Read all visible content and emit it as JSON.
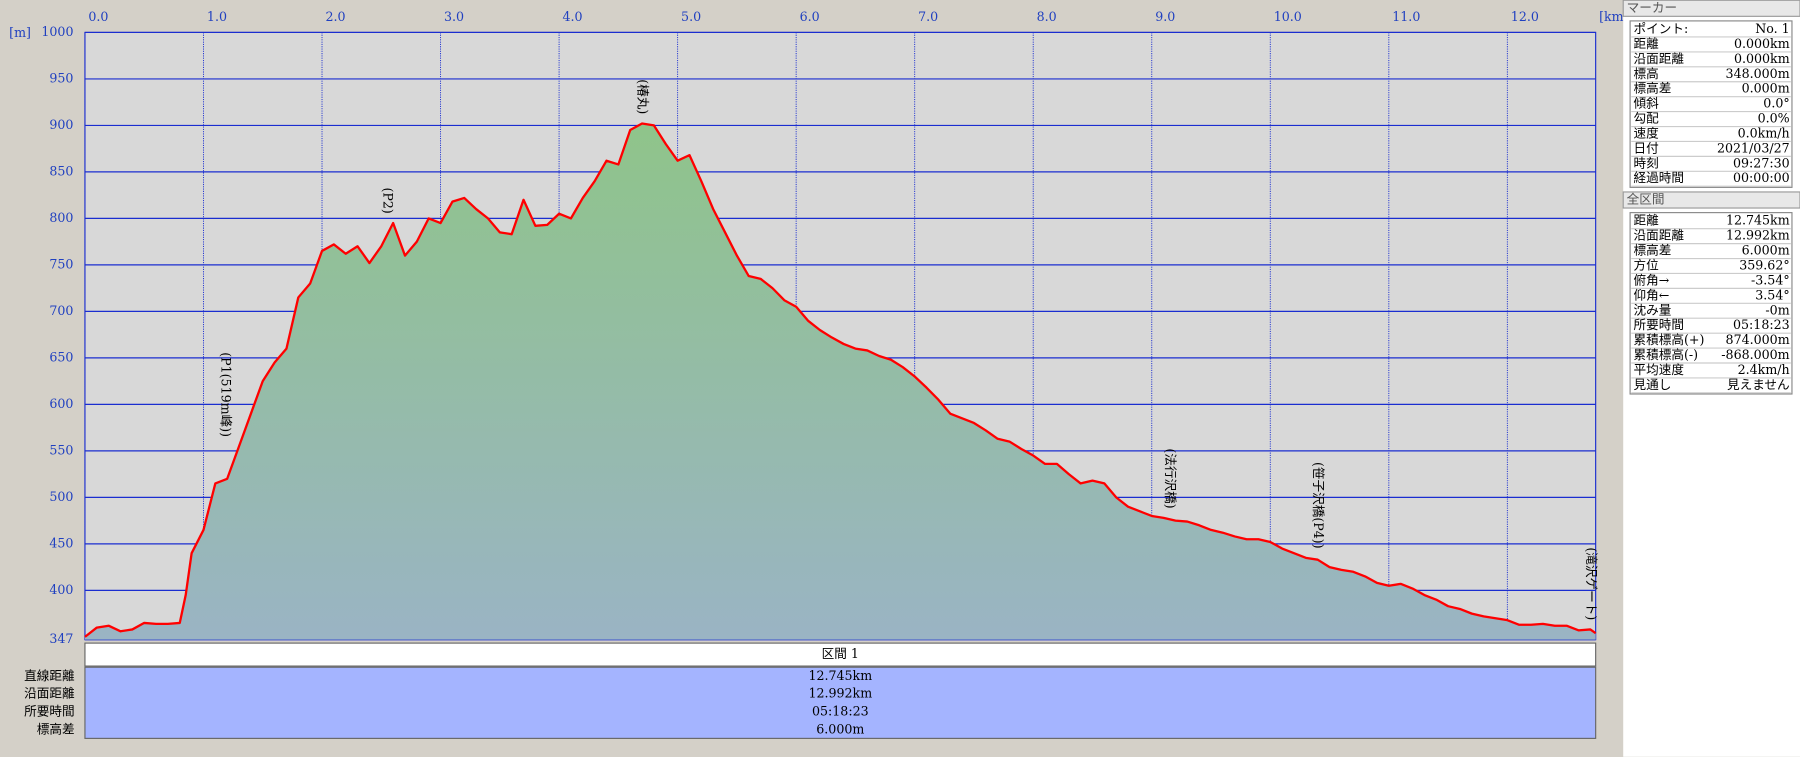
{
  "chart_data": {
    "type": "area",
    "x_unit": "[km]",
    "y_unit": "[m]",
    "x": [
      0.0,
      0.1,
      0.2,
      0.3,
      0.4,
      0.5,
      0.6,
      0.7,
      0.8,
      0.85,
      0.9,
      1.0,
      1.1,
      1.2,
      1.3,
      1.4,
      1.5,
      1.6,
      1.7,
      1.8,
      1.9,
      2.0,
      2.1,
      2.2,
      2.3,
      2.4,
      2.5,
      2.6,
      2.7,
      2.8,
      2.9,
      3.0,
      3.1,
      3.2,
      3.3,
      3.4,
      3.5,
      3.6,
      3.7,
      3.8,
      3.9,
      4.0,
      4.1,
      4.2,
      4.3,
      4.4,
      4.5,
      4.6,
      4.7,
      4.8,
      4.9,
      5.0,
      5.1,
      5.2,
      5.3,
      5.4,
      5.5,
      5.6,
      5.7,
      5.8,
      5.9,
      6.0,
      6.1,
      6.2,
      6.3,
      6.4,
      6.5,
      6.6,
      6.7,
      6.8,
      6.9,
      7.0,
      7.1,
      7.2,
      7.3,
      7.4,
      7.5,
      7.6,
      7.7,
      7.8,
      7.9,
      8.0,
      8.1,
      8.2,
      8.3,
      8.4,
      8.5,
      8.6,
      8.7,
      8.8,
      8.9,
      9.0,
      9.1,
      9.2,
      9.3,
      9.4,
      9.5,
      9.6,
      9.7,
      9.8,
      9.9,
      10.0,
      10.1,
      10.2,
      10.3,
      10.4,
      10.5,
      10.6,
      10.7,
      10.8,
      10.9,
      11.0,
      11.1,
      11.2,
      11.3,
      11.4,
      11.5,
      11.6,
      11.7,
      11.8,
      11.9,
      12.0,
      12.1,
      12.2,
      12.3,
      12.4,
      12.5,
      12.6,
      12.7,
      12.745
    ],
    "values": [
      350,
      360,
      362,
      356,
      358,
      365,
      364,
      364,
      365,
      395,
      440,
      465,
      515,
      520,
      555,
      590,
      625,
      645,
      660,
      715,
      730,
      765,
      772,
      762,
      770,
      752,
      770,
      795,
      760,
      775,
      800,
      795,
      818,
      822,
      810,
      800,
      785,
      783,
      820,
      792,
      793,
      805,
      800,
      822,
      840,
      862,
      858,
      895,
      902,
      900,
      880,
      862,
      868,
      840,
      810,
      785,
      760,
      738,
      735,
      725,
      712,
      705,
      690,
      680,
      672,
      665,
      660,
      658,
      652,
      648,
      640,
      630,
      618,
      605,
      590,
      585,
      580,
      572,
      563,
      560,
      552,
      545,
      536,
      536,
      525,
      515,
      518,
      515,
      500,
      490,
      485,
      480,
      478,
      475,
      474,
      470,
      465,
      462,
      458,
      455,
      455,
      452,
      445,
      440,
      435,
      433,
      425,
      422,
      420,
      415,
      408,
      405,
      407,
      402,
      395,
      390,
      383,
      380,
      375,
      372,
      370,
      368,
      363,
      363,
      364,
      362,
      362,
      357,
      358,
      354
    ],
    "color": "#ff0000",
    "fill_top": "#8fc48a",
    "fill_bottom": "#9ab4c4",
    "xlim": [
      0,
      12.745
    ],
    "ylim": [
      347,
      1000
    ],
    "grid": true,
    "xticks": [
      {
        "value": 0,
        "label": "0.0"
      },
      {
        "value": 1,
        "label": "1.0"
      },
      {
        "value": 2,
        "label": "2.0"
      },
      {
        "value": 3,
        "label": "3.0"
      },
      {
        "value": 4,
        "label": "4.0"
      },
      {
        "value": 5,
        "label": "5.0"
      },
      {
        "value": 6,
        "label": "6.0"
      },
      {
        "value": 7,
        "label": "7.0"
      },
      {
        "value": 8,
        "label": "8.0"
      },
      {
        "value": 9,
        "label": "9.0"
      },
      {
        "value": 10,
        "label": "10.0"
      },
      {
        "value": 11,
        "label": "11.0"
      },
      {
        "value": 12,
        "label": "12.0"
      }
    ],
    "yticks": [
      347,
      400,
      450,
      500,
      550,
      600,
      650,
      700,
      750,
      800,
      850,
      900,
      950,
      1000
    ],
    "annotations": [
      {
        "text": "(P1(519m峰))",
        "x": 1.18
      },
      {
        "text": "(P2)",
        "x": 2.55
      },
      {
        "text": "(椿丸)",
        "x": 4.7
      },
      {
        "text": "(法行沢橋)",
        "x": 9.15
      },
      {
        "text": "(笹子沢橋(P4))",
        "x": 10.4
      },
      {
        "text": "(滝沢ゲート)",
        "x": 12.7
      }
    ]
  },
  "segment_table": {
    "header": "区間 1",
    "rows": [
      [
        "直線距離",
        "12.745km"
      ],
      [
        "沿面距離",
        "12.992km"
      ],
      [
        "所要時間",
        "05:18:23"
      ],
      [
        "標高差",
        "6.000m"
      ]
    ]
  },
  "marker_panel": {
    "title": "マーカー",
    "rows": [
      [
        "ポイント:",
        "No. 1"
      ],
      [
        "距離",
        "0.000km"
      ],
      [
        "沿面距離",
        "0.000km"
      ],
      [
        "標高",
        "348.000m"
      ],
      [
        "標高差",
        "0.000m"
      ],
      [
        "傾斜",
        "0.0°"
      ],
      [
        "勾配",
        "0.0%"
      ],
      [
        "速度",
        "0.0km/h"
      ],
      [
        "日付",
        "2021/03/27"
      ],
      [
        "時刻",
        "09:27:30"
      ],
      [
        "経過時間",
        "00:00:00"
      ]
    ]
  },
  "total_panel": {
    "title": "全区間",
    "rows": [
      [
        "距離",
        "12.745km"
      ],
      [
        "沿面距離",
        "12.992km"
      ],
      [
        "標高差",
        "6.000m"
      ],
      [
        "方位",
        "359.62°"
      ],
      [
        "俯角→",
        "-3.54°"
      ],
      [
        "仰角←",
        "3.54°"
      ],
      [
        "沈み量",
        "-0m"
      ],
      [
        "所要時間",
        "05:18:23"
      ],
      [
        "累積標高(+)",
        "874.000m"
      ],
      [
        "累積標高(-)",
        "-868.000m"
      ],
      [
        "平均速度",
        "2.4km/h"
      ],
      [
        "見通し",
        "見えません"
      ]
    ]
  }
}
